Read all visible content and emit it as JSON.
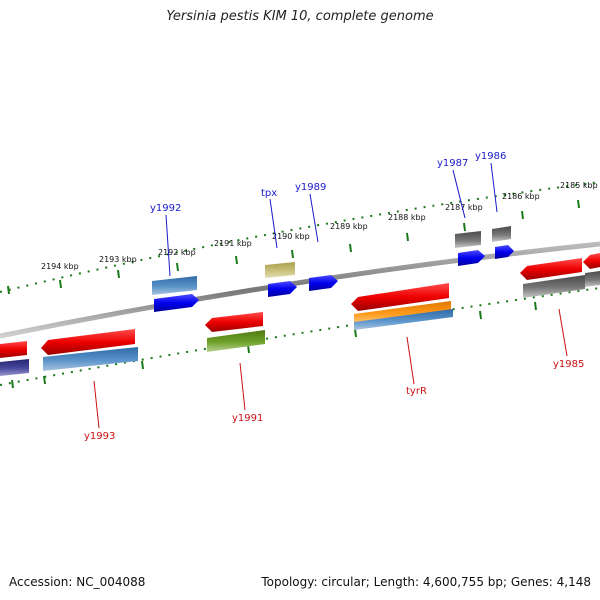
{
  "title": "Yersinia pestis KIM 10, complete genome",
  "footer": {
    "accession": "Accession: NC_004088",
    "summary": "Topology: circular; Length: 4,600,755 bp; Genes: 4,148"
  },
  "colors": {
    "forward_label": "#1a1acc",
    "reverse_label": "#cc1111",
    "tick": "#1a7a1a",
    "backbone": "#8a8a8a"
  },
  "ticks": [
    {
      "label": "2194 kbp"
    },
    {
      "label": "2193 kbp"
    },
    {
      "label": "2192 kbp"
    },
    {
      "label": "2191 kbp"
    },
    {
      "label": "2190 kbp"
    },
    {
      "label": "2189 kbp"
    },
    {
      "label": "2188 kbp"
    },
    {
      "label": "2187 kbp"
    },
    {
      "label": "2186 kbp"
    },
    {
      "label": "2185 kbp"
    }
  ],
  "gene_labels_top": [
    {
      "label": "y1992"
    },
    {
      "label": "tpx"
    },
    {
      "label": "y1989"
    },
    {
      "label": "y1987"
    },
    {
      "label": "y1986"
    }
  ],
  "gene_labels_bottom": [
    {
      "label": "y1993"
    },
    {
      "label": "y1991"
    },
    {
      "label": "tyrR"
    },
    {
      "label": "y1985"
    }
  ]
}
